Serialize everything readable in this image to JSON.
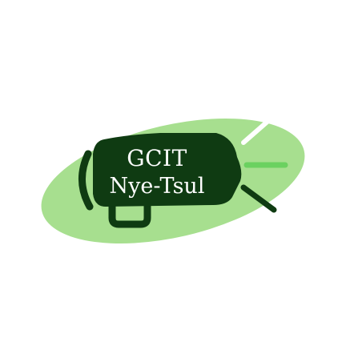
{
  "logo": {
    "line1": "GCIT",
    "line2": "Nye-Tsul"
  },
  "colors": {
    "background": "#ffffff",
    "ellipse": "#a7df8f",
    "megaphone": "#0f3b12",
    "text": "#ffffff",
    "accent_white": "#ffffff",
    "accent_green": "#6bd160",
    "accent_dark": "#0f3b12"
  }
}
